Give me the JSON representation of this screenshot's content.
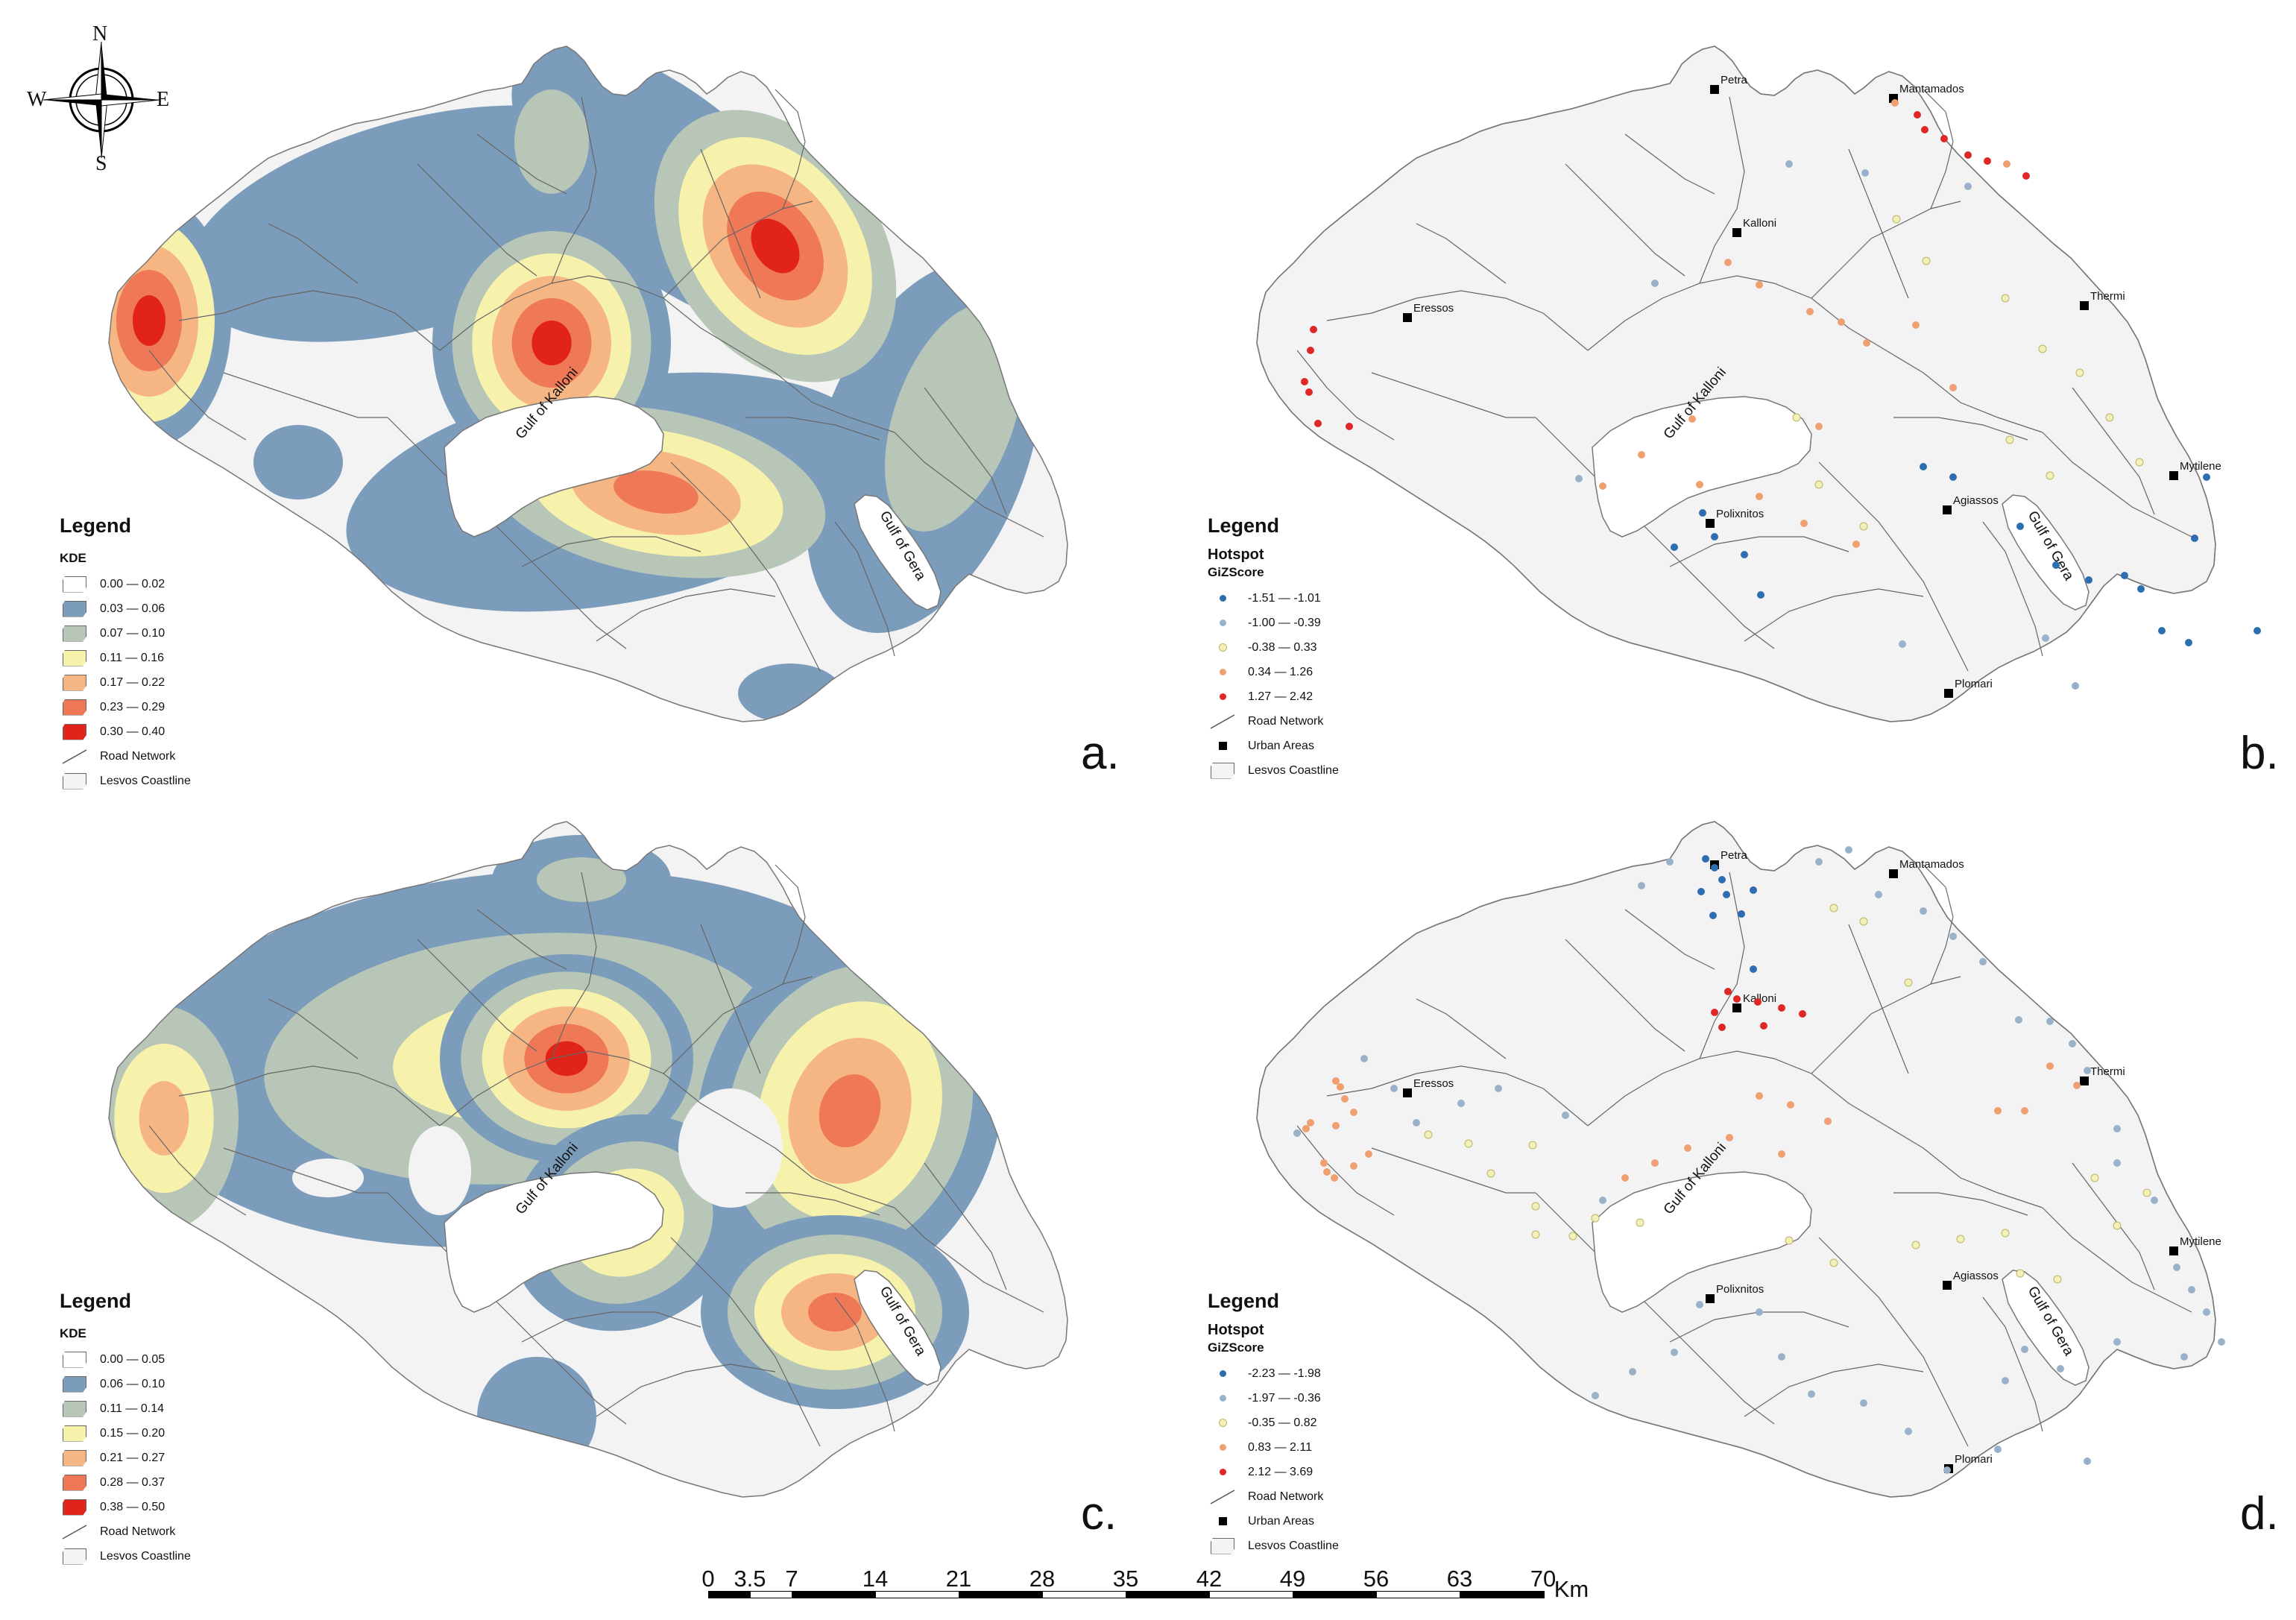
{
  "compass": {
    "n": "N",
    "s": "S",
    "e": "E",
    "w": "W"
  },
  "panels": {
    "a": {
      "letter": "a.",
      "legend": {
        "title": "Legend",
        "subtitle": "KDE",
        "classes": [
          {
            "label": "0.00 — 0.02",
            "color": "#ffffff"
          },
          {
            "label": "0.03 — 0.06",
            "color": "#7c9cbc"
          },
          {
            "label": "0.07 — 0.10",
            "color": "#b8c6b8"
          },
          {
            "label": "0.11 — 0.16",
            "color": "#f7f2ab"
          },
          {
            "label": "0.17 — 0.22",
            "color": "#f6b683"
          },
          {
            "label": "0.23 — 0.29",
            "color": "#ef7856"
          },
          {
            "label": "0.30 — 0.40",
            "color": "#e2231a"
          }
        ],
        "road": "Road Network",
        "coast": "Lesvos Coastline"
      }
    },
    "b": {
      "letter": "b.",
      "legend": {
        "title": "Legend",
        "subtitle": "Hotspot",
        "subtitle2": "GiZScore",
        "classes": [
          {
            "label": "-1.51 — -1.01",
            "color": "#2c6fb0"
          },
          {
            "label": "-1.00 — -0.39",
            "color": "#9ab2c9"
          },
          {
            "label": "-0.38 — 0.33",
            "color": "#f4f1b8"
          },
          {
            "label": "0.34 — 1.26",
            "color": "#f0a070"
          },
          {
            "label": "1.27 — 2.42",
            "color": "#e02727"
          }
        ],
        "road": "Road Network",
        "urban": "Urban Areas",
        "coast": "Lesvos Coastline"
      }
    },
    "c": {
      "letter": "c.",
      "legend": {
        "title": "Legend",
        "subtitle": "KDE",
        "classes": [
          {
            "label": "0.00 — 0.05",
            "color": "#ffffff"
          },
          {
            "label": "0.06 — 0.10",
            "color": "#7c9cbc"
          },
          {
            "label": "0.11 — 0.14",
            "color": "#b8c6b8"
          },
          {
            "label": "0.15 — 0.20",
            "color": "#f7f2ab"
          },
          {
            "label": "0.21 — 0.27",
            "color": "#f6b683"
          },
          {
            "label": "0.28 — 0.37",
            "color": "#ef7856"
          },
          {
            "label": "0.38 — 0.50",
            "color": "#e2231a"
          }
        ],
        "road": "Road Network",
        "coast": "Lesvos Coastline"
      }
    },
    "d": {
      "letter": "d.",
      "legend": {
        "title": "Legend",
        "subtitle": "Hotspot",
        "subtitle2": "GiZScore",
        "classes": [
          {
            "label": "-2.23 — -1.98",
            "color": "#2c6fb0"
          },
          {
            "label": "-1.97 — -0.36",
            "color": "#9ab2c9"
          },
          {
            "label": "-0.35 — 0.82",
            "color": "#f4f1b8"
          },
          {
            "label": "0.83 — 2.11",
            "color": "#f0a070"
          },
          {
            "label": "2.12 — 3.69",
            "color": "#e02727"
          }
        ],
        "road": "Road Network",
        "urban": "Urban Areas",
        "coast": "Lesvos Coastline"
      }
    }
  },
  "gulfs": {
    "kalloni": "Gulf of Kalloni",
    "gera": "Gulf of Gera"
  },
  "towns": [
    "Petra",
    "Mantamados",
    "Kalloni",
    "Thermi",
    "Eressos",
    "Mytilene",
    "Agiassos",
    "Polixnitos",
    "Plomari"
  ],
  "scale": {
    "ticks": [
      "0",
      "3.5",
      "7",
      "14",
      "21",
      "28",
      "35",
      "42",
      "49",
      "56",
      "63",
      "70"
    ],
    "unit": "Km"
  }
}
